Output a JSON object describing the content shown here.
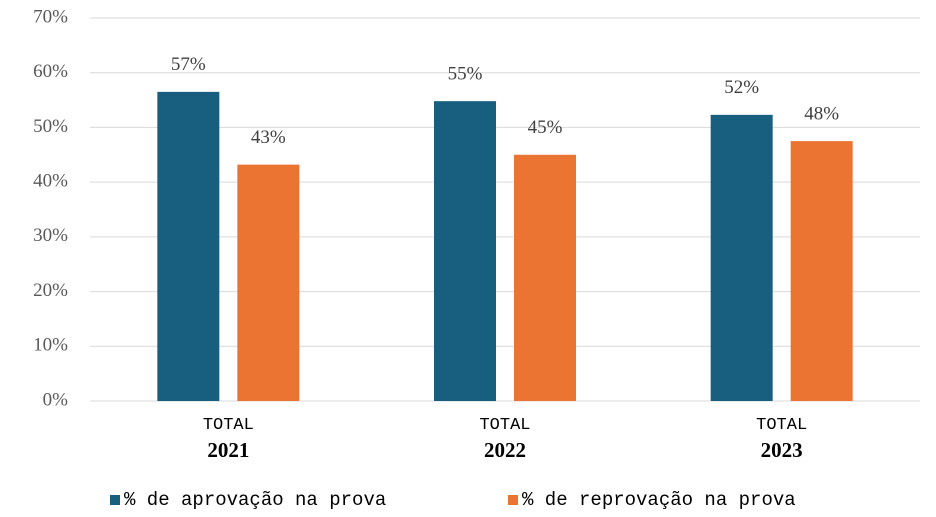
{
  "chart_data": {
    "type": "bar",
    "categories": [
      "TOTAL 2021",
      "TOTAL 2022",
      "TOTAL 2023"
    ],
    "series": [
      {
        "name": "% de aprovação na prova",
        "color": "#175e7f",
        "values": [
          56.5,
          54.8,
          52.3
        ],
        "value_labels": [
          "57%",
          "55%",
          "52%"
        ]
      },
      {
        "name": "% de reprovação na prova",
        "color": "#eb7433",
        "values": [
          43.2,
          45.0,
          47.5
        ],
        "value_labels": [
          "43%",
          "45%",
          "48%"
        ]
      }
    ],
    "ylim": [
      0,
      70
    ],
    "yticks": [
      {
        "value": 0,
        "label": "0%"
      },
      {
        "value": 10,
        "label": "10%"
      },
      {
        "value": 20,
        "label": "20%"
      },
      {
        "value": 30,
        "label": "30%"
      },
      {
        "value": 40,
        "label": "40%"
      },
      {
        "value": 50,
        "label": "50%"
      },
      {
        "value": 60,
        "label": "60%"
      },
      {
        "value": 70,
        "label": "70%"
      }
    ],
    "grid": true,
    "legend": "bottom"
  }
}
